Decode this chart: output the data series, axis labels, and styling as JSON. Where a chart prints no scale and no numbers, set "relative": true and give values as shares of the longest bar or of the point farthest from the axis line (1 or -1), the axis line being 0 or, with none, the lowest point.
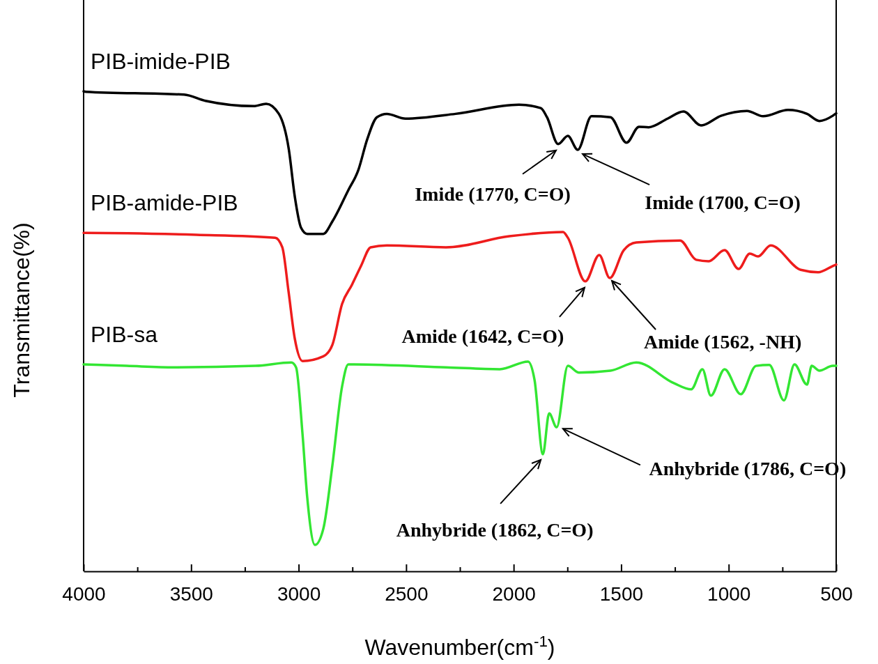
{
  "chart_data": {
    "type": "line",
    "relative": true,
    "xlabel": "Wavenumber(cm$^{-1}$)",
    "ylabel": "Transmittance(%)",
    "xlim": [
      4000,
      500
    ],
    "xticks": [
      4000,
      {
        "value": 3750,
        "label": null
      },
      3500,
      {
        "value": 3250,
        "label": null
      },
      3000,
      {
        "value": 2750,
        "label": null
      },
      2500,
      {
        "value": 2250,
        "label": null
      },
      2000,
      {
        "value": 1750,
        "label": null
      },
      1500,
      {
        "value": 1250,
        "label": null
      },
      1000,
      {
        "value": 750,
        "label": null
      },
      500
    ],
    "marker": "none",
    "line_style": "solid",
    "legend": false,
    "grid": false,
    "series": [
      {
        "name": "PIB-imide-PIB",
        "color": "#000000",
        "x": [
          4000,
          3990,
          3533,
          3433,
          3209,
          3151,
          3092,
          3046,
          3018,
          2989,
          2960,
          2885,
          2843,
          2769,
          2723,
          2681,
          2636,
          2590,
          2503,
          2270,
          1975,
          1874,
          1845,
          1793,
          1748,
          1702,
          1638,
          1550,
          1475,
          1417,
          1372,
          1284,
          1210,
          1129,
          1035,
          915,
          840,
          724,
          636,
          578,
          516,
          500
        ],
        "values": [
          1.0,
          0.999,
          0.993,
          0.98,
          0.969,
          0.974,
          0.953,
          0.88,
          0.781,
          0.716,
          0.703,
          0.703,
          0.729,
          0.794,
          0.835,
          0.9,
          0.946,
          0.953,
          0.943,
          0.953,
          0.972,
          0.965,
          0.946,
          0.89,
          0.907,
          0.878,
          0.948,
          0.946,
          0.893,
          0.926,
          0.925,
          0.943,
          0.958,
          0.929,
          0.949,
          0.959,
          0.948,
          0.961,
          0.953,
          0.938,
          0.949,
          0.954
        ]
      },
      {
        "name": "PIB-amide-PIB",
        "color": "#ee1c1c",
        "x": [
          4000,
          3990,
          3475,
          3109,
          3076,
          3047,
          3018,
          2982,
          2885,
          2843,
          2798,
          2752,
          2710,
          2665,
          2590,
          2315,
          2020,
          1770,
          1748,
          1667,
          1602,
          1553,
          1488,
          1430,
          1226,
          1151,
          1093,
          1019,
          954,
          902,
          863,
          805,
          665,
          584,
          516,
          500
        ],
        "values": [
          0.705,
          0.705,
          0.701,
          0.695,
          0.675,
          0.583,
          0.485,
          0.438,
          0.448,
          0.472,
          0.557,
          0.597,
          0.636,
          0.675,
          0.679,
          0.675,
          0.698,
          0.707,
          0.695,
          0.604,
          0.659,
          0.611,
          0.669,
          0.685,
          0.689,
          0.649,
          0.646,
          0.669,
          0.63,
          0.662,
          0.656,
          0.679,
          0.628,
          0.623,
          0.636,
          0.639
        ]
      },
      {
        "name": "PIB-sa",
        "color": "#33e633",
        "x": [
          4000,
          3800,
          3579,
          3200,
          3034,
          3012,
          2982,
          2960,
          2924,
          2885,
          2843,
          2798,
          2769,
          2315,
          2065,
          1933,
          1903,
          1864,
          1835,
          1800,
          1748,
          1696,
          1550,
          1430,
          1255,
          1174,
          1122,
          1083,
          1019,
          944,
          873,
          811,
          743,
          694,
          636,
          614,
          578,
          516,
          500
        ],
        "values": [
          0.431,
          0.428,
          0.425,
          0.428,
          0.435,
          0.425,
          0.286,
          0.154,
          0.055,
          0.089,
          0.221,
          0.385,
          0.431,
          0.425,
          0.421,
          0.437,
          0.399,
          0.244,
          0.329,
          0.3,
          0.428,
          0.414,
          0.418,
          0.435,
          0.392,
          0.379,
          0.421,
          0.366,
          0.421,
          0.369,
          0.428,
          0.43,
          0.356,
          0.431,
          0.389,
          0.428,
          0.418,
          0.428,
          0.428
        ]
      }
    ],
    "annotations": [
      {
        "text": "Imide (1770, C=O)",
        "x": 1793,
        "y": 0.89
      },
      {
        "text": "Imide (1700, C=O)",
        "x": 1702,
        "y": 0.878
      },
      {
        "text": "Amide (1642, C=O)",
        "x": 1667,
        "y": 0.604
      },
      {
        "text": "Amide (1562, -NH)",
        "x": 1553,
        "y": 0.611
      },
      {
        "text": "Anhybride (1786, C=O)",
        "x": 1800,
        "y": 0.3
      },
      {
        "text": "Anhybride (1862, C=O)",
        "x": 1864,
        "y": 0.244
      }
    ]
  }
}
